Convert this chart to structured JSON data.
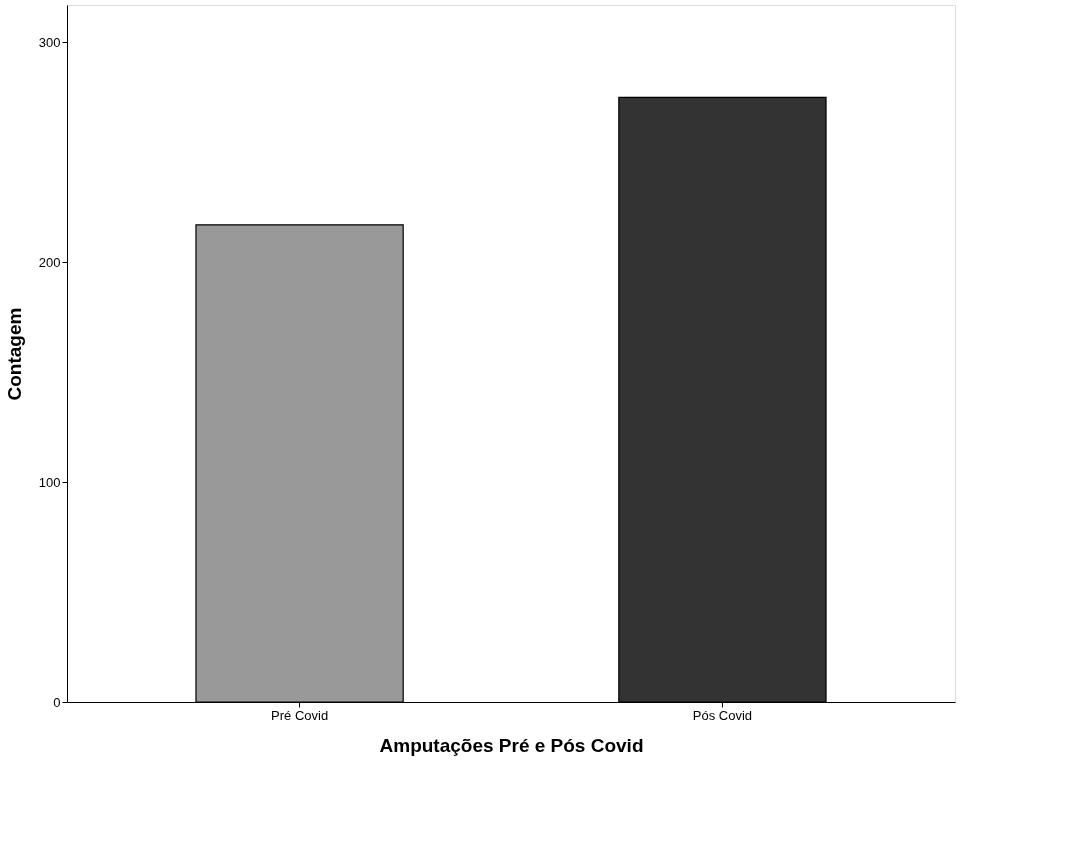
{
  "chart_data": {
    "type": "bar",
    "xlabel": "Amputações Pré e Pós Covid",
    "ylabel": "Contagem",
    "categories": [
      "Pré Covid",
      "Pós Covid"
    ],
    "values": [
      217,
      275
    ],
    "colors": [
      "#999999",
      "#333333"
    ],
    "ylim": [
      0,
      317
    ],
    "yticks": [
      0,
      100,
      200,
      300
    ],
    "grid": false
  }
}
